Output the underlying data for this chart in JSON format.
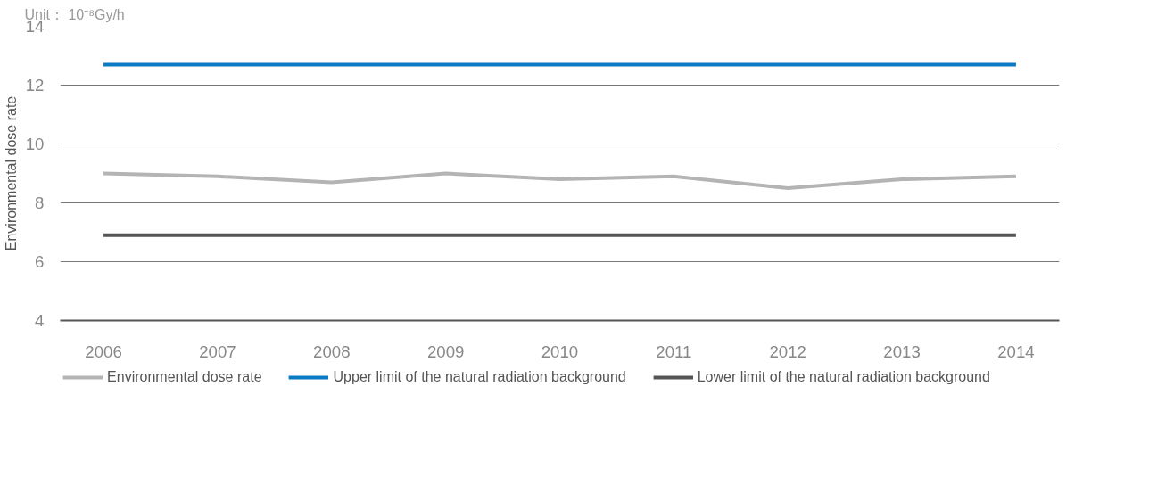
{
  "chart_data": {
    "type": "line",
    "annotations": [
      "Unit： 10⁻⁸Gy/h"
    ],
    "ylabel": "Environmental dose rate",
    "categories": [
      "2006",
      "2007",
      "2008",
      "2009",
      "2010",
      "2011",
      "2012",
      "2013",
      "2014"
    ],
    "series": [
      {
        "name": "Environmental dose rate",
        "color": "#b4b4b4",
        "values": [
          9.0,
          8.9,
          8.7,
          9.0,
          8.8,
          8.9,
          8.5,
          8.8,
          8.9
        ]
      },
      {
        "name": "Upper limit of the natural radiation background",
        "color": "#0a7ac2",
        "values": [
          12.7,
          12.7,
          12.7,
          12.7,
          12.7,
          12.7,
          12.7,
          12.7,
          12.7
        ]
      },
      {
        "name": "Lower limit of the natural radiation background",
        "color": "#555555",
        "values": [
          6.9,
          6.9,
          6.9,
          6.9,
          6.9,
          6.9,
          6.9,
          6.9,
          6.9
        ]
      }
    ],
    "ylim": [
      4,
      14
    ],
    "yticks": [
      4,
      6,
      8,
      10,
      12,
      14
    ],
    "grid": "y",
    "legend": "bottom",
    "marker": "none",
    "line_style": "solid"
  }
}
